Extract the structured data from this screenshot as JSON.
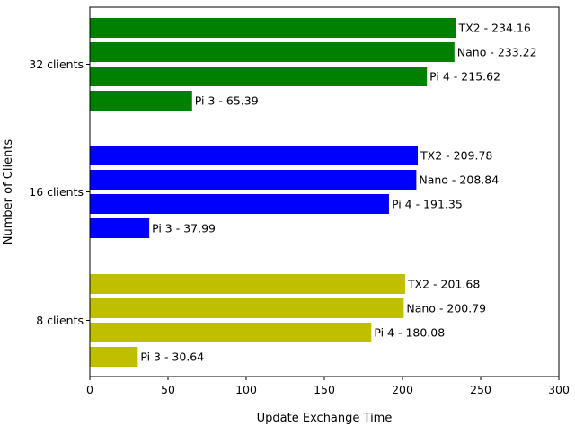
{
  "chart_data": {
    "type": "bar",
    "orientation": "horizontal",
    "xlabel": "Update Exchange Time",
    "ylabel": "Number of Clients",
    "xlim": [
      0,
      300
    ],
    "xticks": [
      "0",
      "50",
      "100",
      "150",
      "200",
      "250",
      "300"
    ],
    "grid": false,
    "groups": [
      {
        "label": "32 clients",
        "color": "#008000",
        "bars": [
          {
            "device": "TX2",
            "value": 234.16,
            "label": "TX2 - 234.16"
          },
          {
            "device": "Nano",
            "value": 233.22,
            "label": "Nano - 233.22"
          },
          {
            "device": "Pi 4",
            "value": 215.62,
            "label": "Pi 4 - 215.62"
          },
          {
            "device": "Pi 3",
            "value": 65.39,
            "label": "Pi 3 - 65.39"
          }
        ]
      },
      {
        "label": "16 clients",
        "color": "#0000ff",
        "bars": [
          {
            "device": "TX2",
            "value": 209.78,
            "label": "TX2 - 209.78"
          },
          {
            "device": "Nano",
            "value": 208.84,
            "label": "Nano - 208.84"
          },
          {
            "device": "Pi 4",
            "value": 191.35,
            "label": "Pi 4 - 191.35"
          },
          {
            "device": "Pi 3",
            "value": 37.99,
            "label": "Pi 3 - 37.99"
          }
        ]
      },
      {
        "label": "8 clients",
        "color": "#bfbf00",
        "bars": [
          {
            "device": "TX2",
            "value": 201.68,
            "label": "TX2 - 201.68"
          },
          {
            "device": "Nano",
            "value": 200.79,
            "label": "Nano - 200.79"
          },
          {
            "device": "Pi 4",
            "value": 180.08,
            "label": "Pi 4 - 180.08"
          },
          {
            "device": "Pi 3",
            "value": 30.64,
            "label": "Pi 3 - 30.64"
          }
        ]
      }
    ]
  }
}
